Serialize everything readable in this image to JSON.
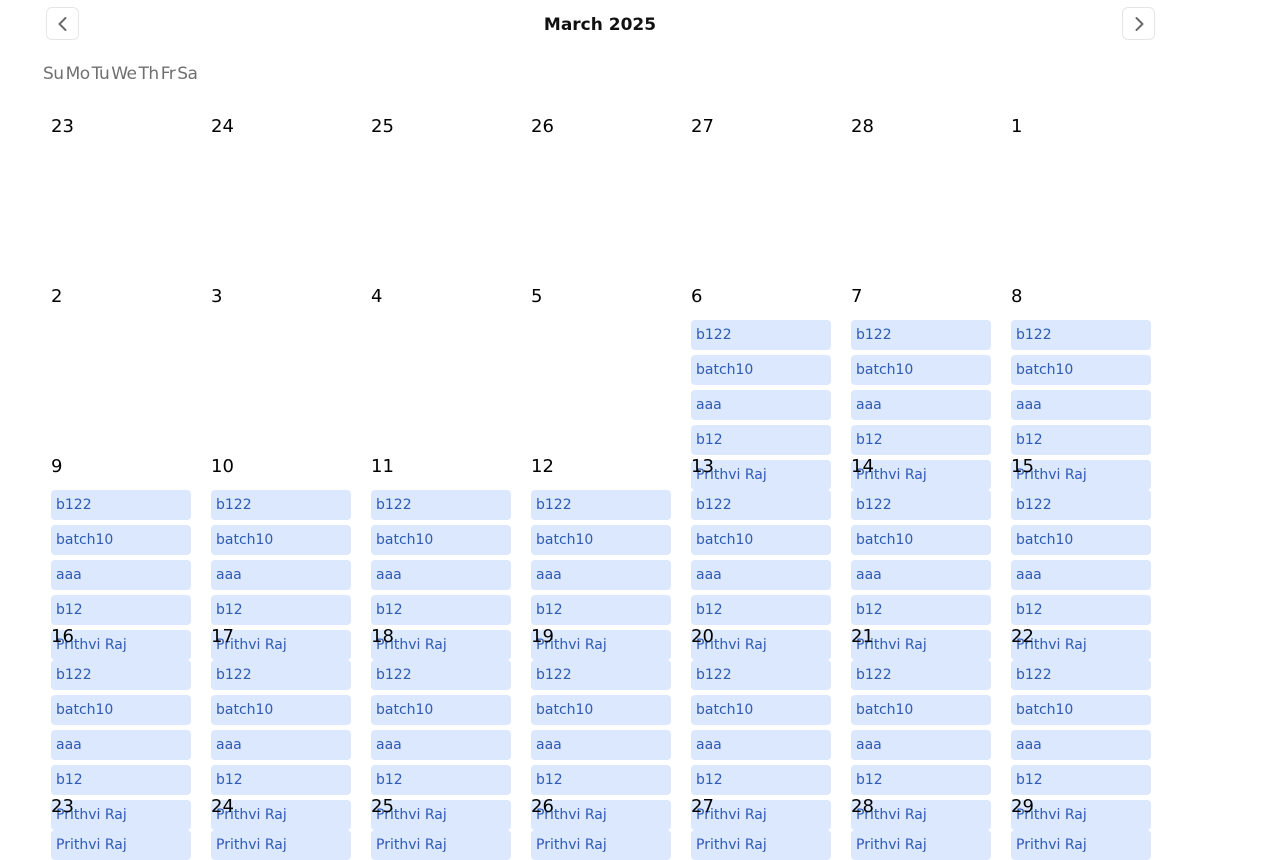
{
  "header": {
    "title": "March 2025",
    "prev_icon": "chevron-left-icon",
    "next_icon": "chevron-right-icon"
  },
  "weekdays": [
    "Su",
    "Mo",
    "Tu",
    "We",
    "Th",
    "Fr",
    "Sa"
  ],
  "colors": {
    "event_bg": "#dbe8fe",
    "event_text": "#2f5bb7",
    "weekday_text": "#6f6f6f"
  },
  "weeks": [
    {
      "days": [
        {
          "date": "23",
          "events": []
        },
        {
          "date": "24",
          "events": []
        },
        {
          "date": "25",
          "events": []
        },
        {
          "date": "26",
          "events": []
        },
        {
          "date": "27",
          "events": []
        },
        {
          "date": "28",
          "events": []
        },
        {
          "date": "1",
          "events": []
        }
      ]
    },
    {
      "days": [
        {
          "date": "2",
          "events": []
        },
        {
          "date": "3",
          "events": []
        },
        {
          "date": "4",
          "events": []
        },
        {
          "date": "5",
          "events": []
        },
        {
          "date": "6",
          "events": [
            "b122",
            "batch10",
            "aaa",
            "b12",
            "Prithvi Raj"
          ]
        },
        {
          "date": "7",
          "events": [
            "b122",
            "batch10",
            "aaa",
            "b12",
            "Prithvi Raj"
          ]
        },
        {
          "date": "8",
          "events": [
            "b122",
            "batch10",
            "aaa",
            "b12",
            "Prithvi Raj"
          ]
        }
      ]
    },
    {
      "days": [
        {
          "date": "9",
          "events": [
            "b122",
            "batch10",
            "aaa",
            "b12",
            "Prithvi Raj"
          ]
        },
        {
          "date": "10",
          "events": [
            "b122",
            "batch10",
            "aaa",
            "b12",
            "Prithvi Raj"
          ]
        },
        {
          "date": "11",
          "events": [
            "b122",
            "batch10",
            "aaa",
            "b12",
            "Prithvi Raj"
          ]
        },
        {
          "date": "12",
          "events": [
            "b122",
            "batch10",
            "aaa",
            "b12",
            "Prithvi Raj"
          ]
        },
        {
          "date": "13",
          "events": [
            "b122",
            "batch10",
            "aaa",
            "b12",
            "Prithvi Raj"
          ]
        },
        {
          "date": "14",
          "events": [
            "b122",
            "batch10",
            "aaa",
            "b12",
            "Prithvi Raj"
          ]
        },
        {
          "date": "15",
          "events": [
            "b122",
            "batch10",
            "aaa",
            "b12",
            "Prithvi Raj"
          ]
        }
      ]
    },
    {
      "days": [
        {
          "date": "16",
          "events": [
            "b122",
            "batch10",
            "aaa",
            "b12",
            "Prithvi Raj"
          ]
        },
        {
          "date": "17",
          "events": [
            "b122",
            "batch10",
            "aaa",
            "b12",
            "Prithvi Raj"
          ]
        },
        {
          "date": "18",
          "events": [
            "b122",
            "batch10",
            "aaa",
            "b12",
            "Prithvi Raj"
          ]
        },
        {
          "date": "19",
          "events": [
            "b122",
            "batch10",
            "aaa",
            "b12",
            "Prithvi Raj"
          ]
        },
        {
          "date": "20",
          "events": [
            "b122",
            "batch10",
            "aaa",
            "b12",
            "Prithvi Raj"
          ]
        },
        {
          "date": "21",
          "events": [
            "b122",
            "batch10",
            "aaa",
            "b12",
            "Prithvi Raj"
          ]
        },
        {
          "date": "22",
          "events": [
            "b122",
            "batch10",
            "aaa",
            "b12",
            "Prithvi Raj"
          ]
        }
      ]
    },
    {
      "days": [
        {
          "date": "23",
          "events": [
            "Prithvi Raj"
          ]
        },
        {
          "date": "24",
          "events": [
            "Prithvi Raj"
          ]
        },
        {
          "date": "25",
          "events": [
            "Prithvi Raj"
          ]
        },
        {
          "date": "26",
          "events": [
            "Prithvi Raj"
          ]
        },
        {
          "date": "27",
          "events": [
            "Prithvi Raj"
          ]
        },
        {
          "date": "28",
          "events": [
            "Prithvi Raj"
          ]
        },
        {
          "date": "29",
          "events": [
            "Prithvi Raj"
          ]
        }
      ]
    }
  ]
}
